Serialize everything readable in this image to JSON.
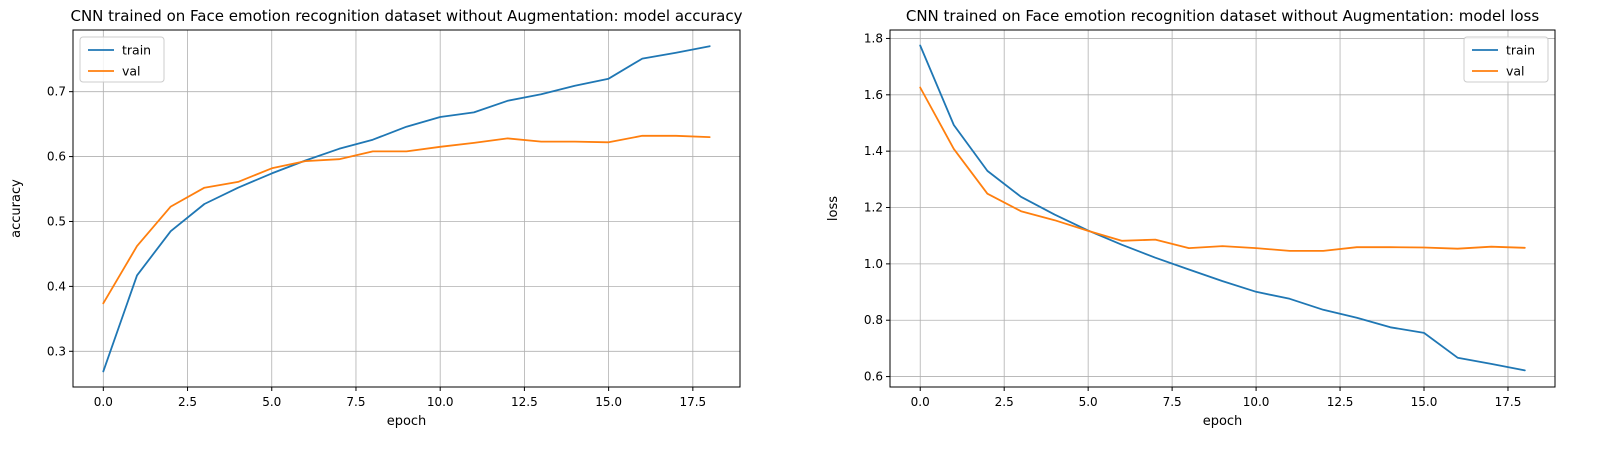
{
  "chart_data": [
    {
      "type": "line",
      "title": "CNN trained on Face emotion recognition dataset without Augmentation: model accuracy",
      "xlabel": "epoch",
      "ylabel": "accuracy",
      "xlim": [
        -0.9,
        18.9
      ],
      "ylim": [
        0.245,
        0.795
      ],
      "xticks": [
        0.0,
        2.5,
        5.0,
        7.5,
        10.0,
        12.5,
        15.0,
        17.5
      ],
      "xtick_labels": [
        "0.0",
        "2.5",
        "5.0",
        "7.5",
        "10.0",
        "12.5",
        "15.0",
        "17.5"
      ],
      "yticks": [
        0.3,
        0.4,
        0.5,
        0.6,
        0.7
      ],
      "ytick_labels": [
        "0.3",
        "0.4",
        "0.5",
        "0.6",
        "0.7"
      ],
      "grid": true,
      "legend_position": "top-left",
      "x": [
        0,
        1,
        2,
        3,
        4,
        5,
        6,
        7,
        8,
        9,
        10,
        11,
        12,
        13,
        14,
        15,
        16,
        17,
        18
      ],
      "series": [
        {
          "name": "train",
          "color": "#1f77b4",
          "values": [
            0.269,
            0.417,
            0.485,
            0.527,
            0.552,
            0.574,
            0.594,
            0.612,
            0.626,
            0.646,
            0.661,
            0.668,
            0.686,
            0.696,
            0.709,
            0.72,
            0.751,
            0.76,
            0.77
          ]
        },
        {
          "name": "val",
          "color": "#ff7f0e",
          "values": [
            0.374,
            0.462,
            0.523,
            0.552,
            0.561,
            0.582,
            0.593,
            0.596,
            0.608,
            0.608,
            0.615,
            0.621,
            0.628,
            0.623,
            0.623,
            0.622,
            0.632,
            0.632,
            0.63
          ]
        }
      ]
    },
    {
      "type": "line",
      "title": "CNN trained on  Face emotion recognition dataset without Augmentation: model loss",
      "xlabel": "epoch",
      "ylabel": "loss",
      "xlim": [
        -0.9,
        18.9
      ],
      "ylim": [
        0.563,
        1.83
      ],
      "xticks": [
        0.0,
        2.5,
        5.0,
        7.5,
        10.0,
        12.5,
        15.0,
        17.5
      ],
      "xtick_labels": [
        "0.0",
        "2.5",
        "5.0",
        "7.5",
        "10.0",
        "12.5",
        "15.0",
        "17.5"
      ],
      "yticks": [
        0.6,
        0.8,
        1.0,
        1.2,
        1.4,
        1.6,
        1.8
      ],
      "ytick_labels": [
        "0.6",
        "0.8",
        "1.0",
        "1.2",
        "1.4",
        "1.6",
        "1.8"
      ],
      "grid": true,
      "legend_position": "top-right",
      "x": [
        0,
        1,
        2,
        3,
        4,
        5,
        6,
        7,
        8,
        9,
        10,
        11,
        12,
        13,
        14,
        15,
        16,
        17,
        18
      ],
      "series": [
        {
          "name": "train",
          "color": "#1f77b4",
          "values": [
            1.775,
            1.493,
            1.33,
            1.238,
            1.175,
            1.118,
            1.068,
            1.022,
            0.98,
            0.939,
            0.901,
            0.876,
            0.837,
            0.809,
            0.775,
            0.755,
            0.667,
            0.645,
            0.622
          ]
        },
        {
          "name": "val",
          "color": "#ff7f0e",
          "values": [
            1.626,
            1.408,
            1.249,
            1.187,
            1.155,
            1.117,
            1.082,
            1.086,
            1.056,
            1.063,
            1.056,
            1.046,
            1.046,
            1.059,
            1.059,
            1.058,
            1.054,
            1.061,
            1.057
          ]
        }
      ]
    }
  ]
}
